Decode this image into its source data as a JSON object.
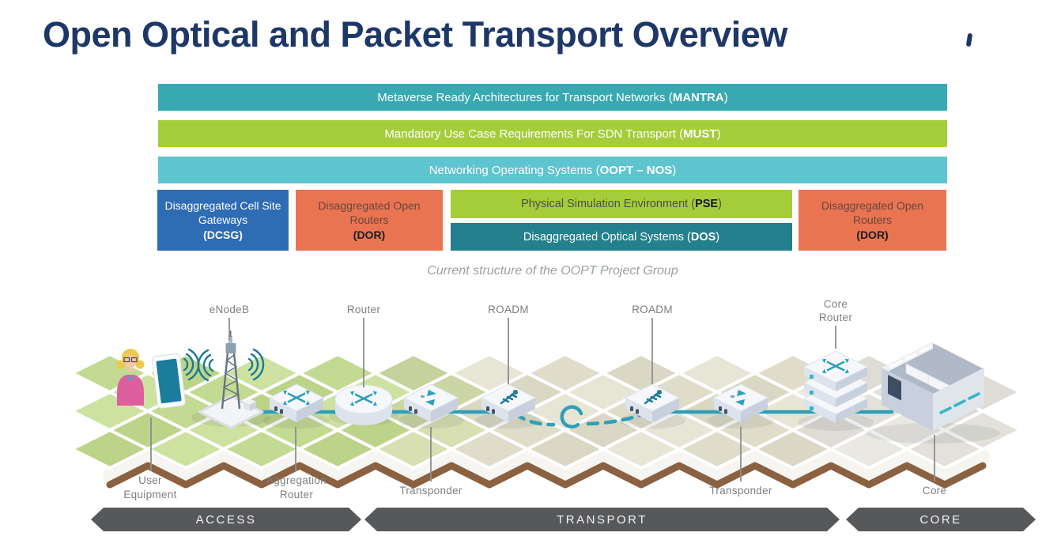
{
  "title": "Open Optical and Packet Transport Overview",
  "program_bars": {
    "mantra": {
      "prefix": "Metaverse Ready Architectures for Transport Networks (",
      "acronym": "MANTRA",
      "suffix": ")"
    },
    "must": {
      "prefix": "Mandatory Use Case Requirements For SDN Transport (",
      "acronym": "MUST",
      "suffix": ")"
    },
    "nos": {
      "prefix": "Networking Operating Systems (",
      "acronym": "OOPT – NOS",
      "suffix": ")"
    }
  },
  "project_blocks": {
    "dcsg": {
      "name": "Disaggregated Cell Site Gateways",
      "acronym": "(DCSG)"
    },
    "dor_left": {
      "name": "Disaggregated Open Routers",
      "acronym": "(DOR)"
    },
    "pse": {
      "prefix": "Physical Simulation Environment (",
      "acronym": "PSE",
      "suffix": ")"
    },
    "dos": {
      "prefix": "Disaggregated Optical Systems (",
      "acronym": "DOS",
      "suffix": ")"
    },
    "dor_right": {
      "name": "Disaggregated Open Routers",
      "acronym": "(DOR)"
    }
  },
  "caption": "Current structure of the OOPT Project Group",
  "network_diagram": {
    "labels_top": {
      "enodeb": "eNodeB",
      "router": "Router",
      "roadm_left": "ROADM",
      "roadm_right": "ROADM",
      "core_router_line1": "Core",
      "core_router_line2": "Router"
    },
    "labels_bottom": {
      "user_equipment_line1": "User",
      "user_equipment_line2": "Equipment",
      "aggregation_router_line1": "Aggregation",
      "aggregation_router_line2": "Router",
      "transponder_left": "Transponder",
      "transponder_right": "Transponder",
      "core": "Core"
    }
  },
  "segment_ribbons": {
    "access": "ACCESS",
    "transport": "TRANSPORT",
    "core": "CORE"
  },
  "colors": {
    "title_navy": "#1d3867",
    "mantra_teal": "#39a9b1",
    "must_green": "#a5cd39",
    "nos_cyan": "#5ec4cf",
    "dcsg_blue": "#2e6cb4",
    "dor_orange": "#e87452",
    "dos_teal": "#23808c",
    "ribbon_gray": "#57585a",
    "cable_teal": "#2f9fb7",
    "ground_green": "#c3da92",
    "ground_beige": "#dfddc9",
    "ground_gray": "#e3e1da"
  }
}
